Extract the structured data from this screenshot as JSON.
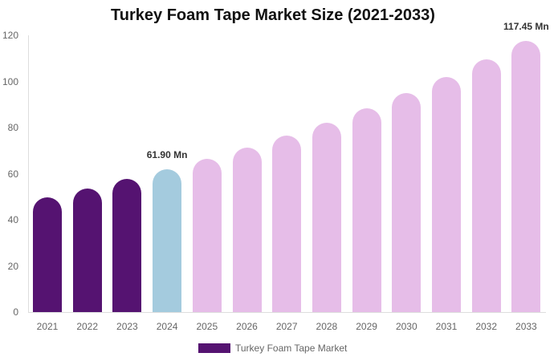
{
  "chart_data": {
    "type": "bar",
    "title": "Turkey Foam Tape Market Size (2021-2033)",
    "xlabel": "",
    "ylabel": "",
    "ylim": [
      0,
      120
    ],
    "yticks": [
      0,
      20,
      40,
      60,
      80,
      100,
      120
    ],
    "grid": false,
    "legend_position": "bottom",
    "categories": [
      "2021",
      "2022",
      "2023",
      "2024",
      "2025",
      "2026",
      "2027",
      "2028",
      "2029",
      "2030",
      "2031",
      "2032",
      "2033"
    ],
    "series": [
      {
        "name": "Turkey Foam Tape Market",
        "values": [
          49.9,
          53.6,
          57.7,
          61.9,
          66.4,
          71.3,
          76.5,
          82.1,
          88.3,
          95.0,
          101.9,
          109.6,
          117.45
        ]
      }
    ],
    "bar_colors": [
      "#551371",
      "#551371",
      "#551371",
      "#a4cbde",
      "#e6bde8",
      "#e6bde8",
      "#e6bde8",
      "#e6bde8",
      "#e6bde8",
      "#e6bde8",
      "#e6bde8",
      "#e6bde8",
      "#e6bde8"
    ],
    "annotations": [
      {
        "category": "2024",
        "text": "61.90 Mn"
      },
      {
        "category": "2033",
        "text": "117.45 Mn"
      }
    ]
  },
  "title": "Turkey Foam Tape Market Size (2021-2033)",
  "legend": {
    "label": "Turkey Foam Tape Market",
    "color": "#551371"
  },
  "ytick_labels": [
    "0",
    "20",
    "40",
    "60",
    "80",
    "100",
    "120"
  ],
  "annotations": {
    "a2024": "61.90 Mn",
    "a2033": "117.45 Mn"
  }
}
